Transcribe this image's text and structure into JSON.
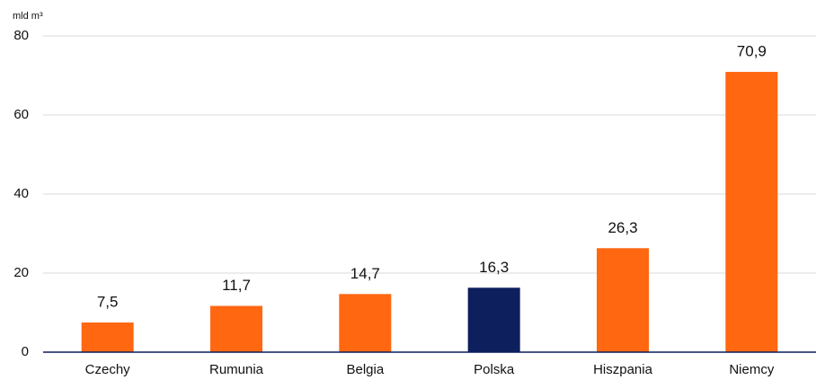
{
  "chart_data": {
    "type": "bar",
    "y_label": "mld m³",
    "categories": [
      "Czechy",
      "Rumunia",
      "Belgia",
      "Polska",
      "Hiszpania",
      "Niemcy"
    ],
    "values": [
      7.5,
      11.7,
      14.7,
      16.3,
      26.3,
      70.9
    ],
    "value_labels": [
      "7,5",
      "11,7",
      "14,7",
      "16,3",
      "26,3",
      "70,9"
    ],
    "colors": [
      "#ff6711",
      "#ff6711",
      "#ff6711",
      "#0d1f5c",
      "#ff6711",
      "#ff6711"
    ],
    "ylim": [
      0,
      80
    ],
    "yticks": [
      0,
      20,
      40,
      60,
      80
    ],
    "grid": true
  }
}
